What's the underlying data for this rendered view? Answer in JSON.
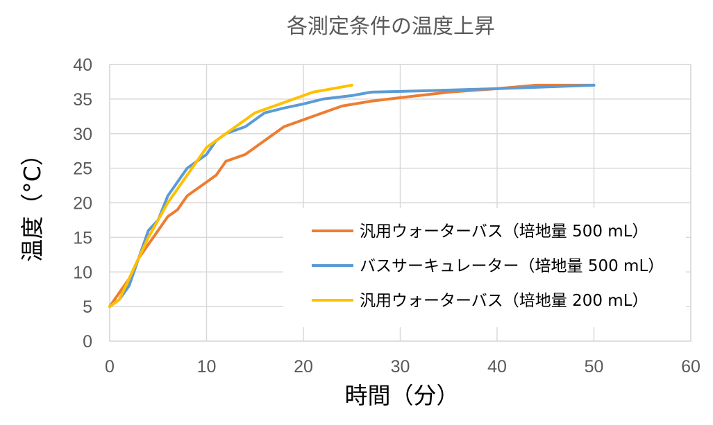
{
  "chart_data": {
    "type": "line",
    "title": "各測定条件の温度上昇",
    "xlabel": "時間（分）",
    "ylabel": "温度（°C）",
    "xlim": [
      0,
      60
    ],
    "ylim": [
      0,
      40
    ],
    "xticks": [
      0,
      10,
      20,
      30,
      40,
      50,
      60
    ],
    "yticks": [
      0,
      5,
      10,
      15,
      20,
      25,
      30,
      35,
      40
    ],
    "grid": true,
    "legend_position": "bottom-right",
    "series": [
      {
        "name": "汎用ウォーターバス（培地量 500 mL）",
        "color": "#ED7D31",
        "x": [
          0,
          1,
          2,
          3,
          4,
          5,
          6,
          7,
          8,
          9,
          10,
          11,
          12,
          14,
          16,
          18,
          20,
          22,
          24,
          27,
          30,
          35,
          40,
          44,
          50
        ],
        "y": [
          5,
          7,
          9,
          12,
          14,
          16,
          18,
          19,
          21,
          22,
          23,
          24,
          26,
          27,
          29,
          31,
          32,
          33,
          34,
          34.7,
          35.2,
          36,
          36.5,
          37,
          37
        ]
      },
      {
        "name": "バスサーキュレーター（培地量 500 mL）",
        "color": "#5B9BD5",
        "x": [
          0,
          1,
          2,
          3,
          4,
          5,
          6,
          8,
          10,
          11,
          12,
          14,
          16,
          18,
          20,
          22,
          25,
          27,
          30,
          40,
          50
        ],
        "y": [
          5,
          6,
          8,
          12,
          16,
          17.5,
          21,
          25,
          27,
          29,
          30,
          31,
          33,
          33.7,
          34.3,
          35,
          35.5,
          36,
          36.1,
          36.5,
          37
        ]
      },
      {
        "name": "汎用ウォーターバス（培地量 200 mL）",
        "color": "#FFC000",
        "x": [
          0,
          1,
          2,
          3,
          4,
          5,
          6,
          8,
          10,
          12,
          15,
          18,
          21,
          25
        ],
        "y": [
          5,
          6,
          9,
          12,
          15,
          17.5,
          20,
          24,
          28,
          30,
          33,
          34.5,
          36,
          37
        ]
      }
    ]
  }
}
